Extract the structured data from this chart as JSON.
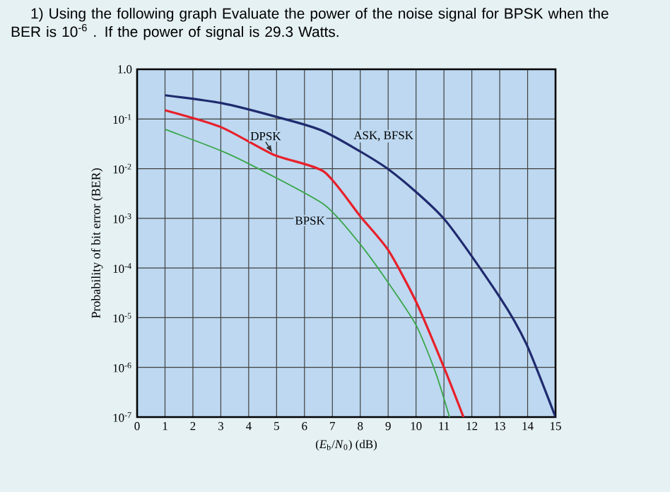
{
  "chart_data": {
    "type": "line",
    "title": "1) Using the following graph Evaluate the power of the noise signal for BPSK when the BER is 10$^{-6}$ . If the power of signal is 29.3 Watts.",
    "xlabel": "(*E*$_{b}$/*N*$_{0}$) (dB)",
    "ylabel": "Probability of bit error (BER)",
    "log": "y",
    "grid": true,
    "legend": false,
    "marker": "none",
    "line_style": "solid",
    "xlim": [
      0,
      15
    ],
    "ylim": [
      1e-07,
      1
    ],
    "xticks": [
      0,
      1,
      2,
      3,
      4,
      5,
      6,
      7,
      8,
      9,
      10,
      11,
      12,
      13,
      14,
      15
    ],
    "yticks": [
      {
        "value": 1e-07,
        "label": "10$^{-7}$"
      },
      {
        "value": 1e-06,
        "label": "10$^{-6}$"
      },
      {
        "value": 1e-05,
        "label": "10$^{-5}$"
      },
      {
        "value": 0.0001,
        "label": "10$^{-4}$"
      },
      {
        "value": 0.001,
        "label": "10$^{-3}$"
      },
      {
        "value": 0.01,
        "label": "10$^{-2}$"
      },
      {
        "value": 0.1,
        "label": "10$^{-1}$"
      },
      {
        "value": 1,
        "label": "1.0"
      }
    ],
    "series": [
      {
        "name": "ASK, BFSK",
        "color": "#1f2a6e",
        "x": [
          1,
          3,
          5,
          6.7,
          9,
          11,
          13,
          13.95,
          15
        ],
        "values": [
          0.3,
          0.21,
          0.11,
          0.056,
          0.0098,
          0.00098,
          2.6e-05,
          3e-06,
          1e-07
        ]
      },
      {
        "name": "DPSK",
        "color": "#e8202a",
        "x": [
          1,
          3,
          4.9,
          6.7,
          8,
          9,
          10,
          11,
          11.7
        ],
        "values": [
          0.15,
          0.069,
          0.019,
          0.0087,
          0.0011,
          0.00023,
          2.1e-05,
          1e-06,
          1e-07
        ]
      },
      {
        "name": "BPSK",
        "color": "#3aa64a",
        "x": [
          1,
          3,
          4.2,
          6.7,
          8,
          9,
          10,
          10.7,
          11.2
        ],
        "values": [
          0.062,
          0.023,
          0.011,
          0.0019,
          0.0003,
          5.1e-05,
          7.1e-06,
          7.9e-07,
          1e-07
        ]
      }
    ]
  }
}
